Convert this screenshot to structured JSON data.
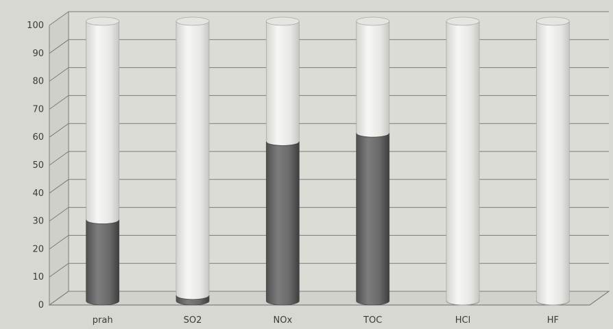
{
  "chart_data": {
    "type": "bar",
    "categories": [
      "prah",
      "SO2",
      "NOx",
      "TOC",
      "HCl",
      "HF"
    ],
    "series": [
      {
        "values": [
          29,
          2,
          57,
          60,
          0,
          0
        ],
        "color": "#6c6c6c"
      },
      {
        "values": [
          71,
          98,
          43,
          40,
          100,
          100
        ],
        "color": "#efefec"
      }
    ],
    "stacked": true,
    "three_d": true,
    "ylim": [
      0,
      100
    ],
    "yticks": [
      "0",
      "10",
      "20",
      "30",
      "40",
      "50",
      "60",
      "70",
      "80",
      "90",
      "100"
    ],
    "grid": true,
    "legend": "none",
    "title": "",
    "xlabel": "",
    "ylabel": ""
  }
}
